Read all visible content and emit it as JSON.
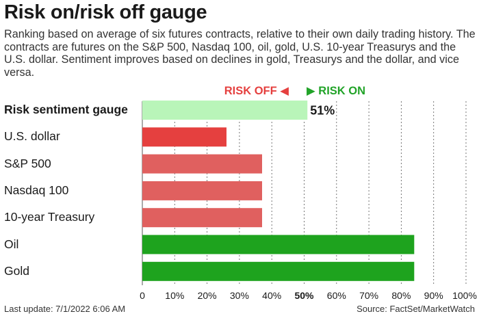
{
  "header": {
    "title": "Risk on/risk off gauge",
    "subtitle": "Ranking based on average of six futures contracts, relative to their own daily trading history. The contracts are futures on the S&P 500, Nasdaq 100, oil, gold, U.S. 10-year Treasurys and the U.S. dollar. Sentiment improves based on declines in gold, Treasurys and the dollar, and vice versa."
  },
  "direction": {
    "risk_off_label": "RISK OFF",
    "risk_on_label": "RISK ON",
    "risk_off_color": "#e5403f",
    "risk_on_color": "#21a328"
  },
  "chart_data": {
    "type": "bar",
    "orientation": "horizontal",
    "categories": [
      "Risk sentiment gauge",
      "U.S. dollar",
      "S&P 500",
      "Nasdaq 100",
      "10-year Treasury",
      "Oil",
      "Gold"
    ],
    "values": [
      51,
      26,
      37,
      37,
      37,
      84,
      84
    ],
    "data_labels": [
      "51%",
      "",
      "",
      "",
      "",
      "",
      ""
    ],
    "colors": [
      "#b9f5b9",
      "#e5403f",
      "#e0605f",
      "#e0605f",
      "#e0605f",
      "#1ea31e",
      "#1ea31e"
    ],
    "xlim": [
      0,
      100
    ],
    "xticks": [
      0,
      10,
      20,
      30,
      40,
      50,
      60,
      70,
      80,
      90,
      100
    ],
    "xtick_labels": [
      "0",
      "10%",
      "20%",
      "30%",
      "40%",
      "50%",
      "60%",
      "70%",
      "80%",
      "90%",
      "100%"
    ],
    "highlight_tick": 50,
    "grid": "vertical dashed"
  },
  "footer": {
    "last_update": "Last update: 7/1/2022 6:06 AM",
    "source": "Source: FactSet/MarketWatch"
  }
}
